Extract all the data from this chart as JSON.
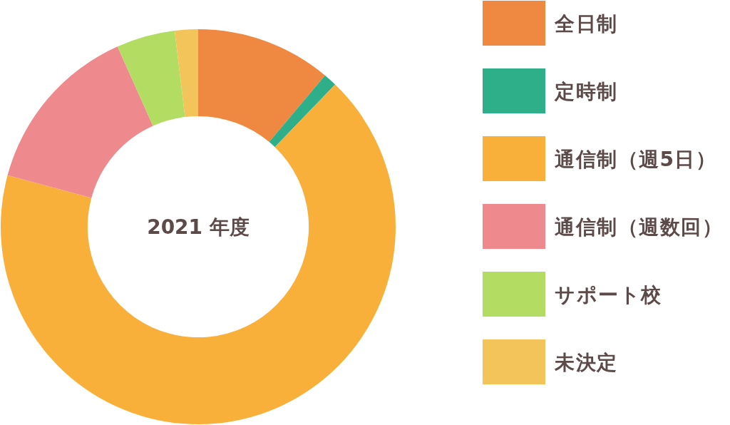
{
  "chart_data": {
    "type": "donut",
    "title": "2021 年度",
    "categories": [
      "全日制",
      "定時制",
      "通信制（週5日）",
      "通信制（週数回）",
      "サポート校",
      "未決定"
    ],
    "values": [
      11.1,
      1.1,
      67.0,
      14.1,
      4.8,
      1.9
    ],
    "colors": [
      "#ef8841",
      "#2fae8a",
      "#f9b03b",
      "#ee8a8d",
      "#b3dc63",
      "#f2c45a"
    ],
    "legend": "right"
  }
}
